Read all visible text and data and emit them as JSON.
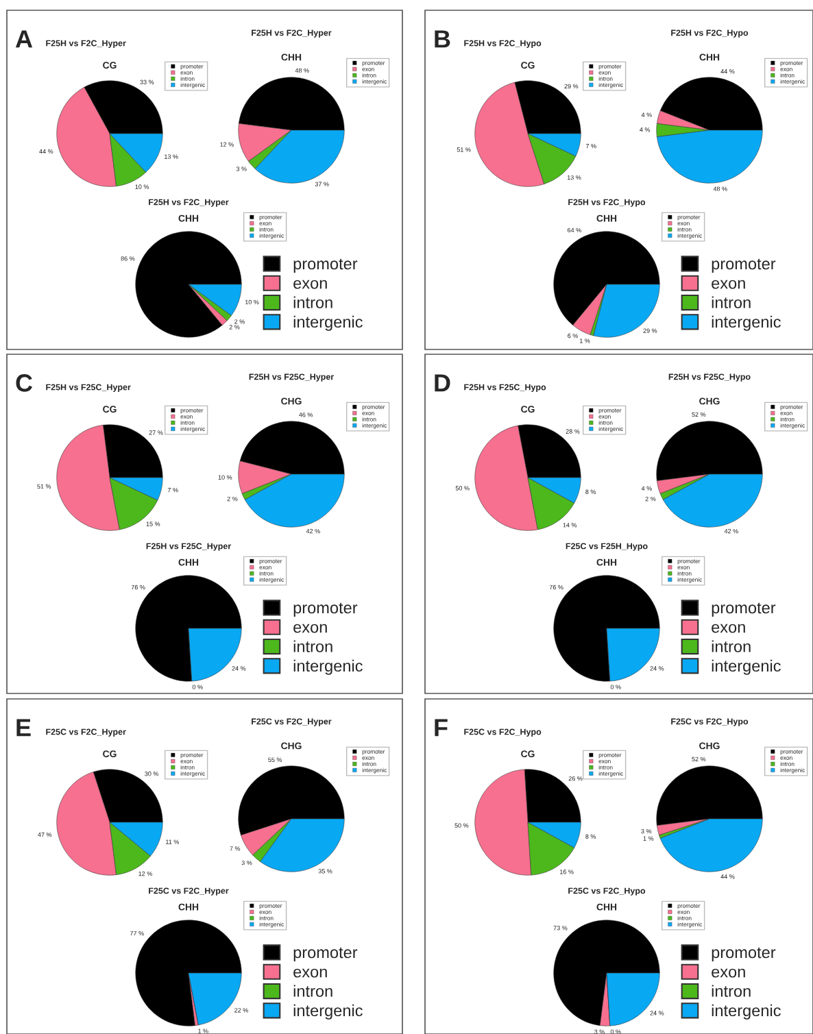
{
  "chart_data": [
    {
      "type": "pie",
      "title": "F25H vs F2C_Hyper",
      "subtitle": "CG",
      "annotations": [
        "A"
      ],
      "categories": [
        "promoter",
        "exon",
        "intron",
        "intergenic"
      ],
      "values": [
        33,
        44,
        10,
        13
      ],
      "value_labels": [
        "33 %",
        "44 %",
        "10 %",
        "13 %"
      ],
      "colors": [
        "#000000",
        "#f7708f",
        "#4cb81c",
        "#09a8f3"
      ],
      "legend": "top right"
    },
    {
      "type": "pie",
      "title": "F25H vs F2C_Hyper",
      "subtitle": "CHH",
      "categories": [
        "promoter",
        "exon",
        "intron",
        "intergenic"
      ],
      "values": [
        48,
        12,
        3,
        37
      ],
      "value_labels": [
        "48 %",
        "12 %",
        "3 %",
        "37 %"
      ],
      "colors": [
        "#000000",
        "#f7708f",
        "#4cb81c",
        "#09a8f3"
      ],
      "legend": "top right"
    },
    {
      "type": "pie",
      "title": "F25H vs F2C_Hyper",
      "subtitle": "CHH",
      "categories": [
        "promoter",
        "exon",
        "intron",
        "intergenic"
      ],
      "values": [
        86,
        2,
        2,
        10
      ],
      "value_labels": [
        "86 %",
        "2 %",
        "2 %",
        "10 %"
      ],
      "colors": [
        "#000000",
        "#f7708f",
        "#4cb81c",
        "#09a8f3"
      ],
      "legend": "right"
    },
    {
      "type": "pie",
      "title": "F25H vs F2C_Hypo",
      "subtitle": "CG",
      "annotations": [
        "B"
      ],
      "categories": [
        "promoter",
        "exon",
        "intron",
        "intergenic"
      ],
      "values": [
        29,
        51,
        13,
        7
      ],
      "value_labels": [
        "29 %",
        "51 %",
        "13 %",
        "7 %"
      ],
      "colors": [
        "#000000",
        "#f7708f",
        "#4cb81c",
        "#09a8f3"
      ],
      "legend": "top right"
    },
    {
      "type": "pie",
      "title": "F25H vs F2C_Hypo",
      "subtitle": "CHH",
      "categories": [
        "promoter",
        "exon",
        "intron",
        "intergenic"
      ],
      "values": [
        44,
        4,
        4,
        48
      ],
      "value_labels": [
        "44 %",
        "4 %",
        "4 %",
        "48 %"
      ],
      "colors": [
        "#000000",
        "#f7708f",
        "#4cb81c",
        "#09a8f3"
      ],
      "legend": "top right"
    },
    {
      "type": "pie",
      "title": "F25H vs F2C_Hypo",
      "subtitle": "CHH",
      "categories": [
        "promoter",
        "exon",
        "intron",
        "intergenic"
      ],
      "values": [
        64,
        6,
        1,
        29
      ],
      "value_labels": [
        "64 %",
        "6 %",
        "1 %",
        "29 %"
      ],
      "colors": [
        "#000000",
        "#f7708f",
        "#4cb81c",
        "#09a8f3"
      ],
      "legend": "right"
    },
    {
      "type": "pie",
      "title": "F25H vs F25C_Hyper",
      "subtitle": "CG",
      "annotations": [
        "C"
      ],
      "categories": [
        "promoter",
        "exon",
        "intron",
        "intergenic"
      ],
      "values": [
        27,
        51,
        15,
        7
      ],
      "value_labels": [
        "27 %",
        "51 %",
        "15 %",
        "7 %"
      ],
      "colors": [
        "#000000",
        "#f7708f",
        "#4cb81c",
        "#09a8f3"
      ],
      "legend": "top right"
    },
    {
      "type": "pie",
      "title": "F25H vs F25C_Hyper",
      "subtitle": "CHG",
      "categories": [
        "promoter",
        "exon",
        "intron",
        "intergenic"
      ],
      "values": [
        46,
        10,
        2,
        42
      ],
      "value_labels": [
        "46 %",
        "10 %",
        "2 %",
        "42 %"
      ],
      "colors": [
        "#000000",
        "#f7708f",
        "#4cb81c",
        "#09a8f3"
      ],
      "legend": "top right"
    },
    {
      "type": "pie",
      "title": "F25H vs F25C_Hyper",
      "subtitle": "CHH",
      "categories": [
        "promoter",
        "exon",
        "intron",
        "intergenic"
      ],
      "values": [
        76,
        0,
        0,
        24
      ],
      "value_labels": [
        "76 %",
        "0 %",
        null,
        "24 %"
      ],
      "colors": [
        "#000000",
        "#f7708f",
        "#4cb81c",
        "#09a8f3"
      ],
      "legend": "right"
    },
    {
      "type": "pie",
      "title": "F25H vs F25C_Hypo",
      "subtitle": "CG",
      "annotations": [
        "D"
      ],
      "categories": [
        "promoter",
        "exon",
        "intron",
        "intergenic"
      ],
      "values": [
        28,
        50,
        14,
        8
      ],
      "value_labels": [
        "28 %",
        "50 %",
        "14 %",
        "8 %"
      ],
      "colors": [
        "#000000",
        "#f7708f",
        "#4cb81c",
        "#09a8f3"
      ],
      "legend": "top right"
    },
    {
      "type": "pie",
      "title": "F25H vs F25C_Hypo",
      "subtitle": "CHG",
      "categories": [
        "promoter",
        "exon",
        "intron",
        "intergenic"
      ],
      "values": [
        52,
        4,
        2,
        42
      ],
      "value_labels": [
        "52 %",
        "4 %",
        "2 %",
        "42 %"
      ],
      "colors": [
        "#000000",
        "#f7708f",
        "#4cb81c",
        "#09a8f3"
      ],
      "legend": "top right"
    },
    {
      "type": "pie",
      "title": "F25C vs F25H_Hypo",
      "subtitle": "CHH",
      "categories": [
        "promoter",
        "exon",
        "intron",
        "intergenic"
      ],
      "values": [
        76,
        0,
        0,
        24
      ],
      "value_labels": [
        "76 %",
        "0 %",
        null,
        "24 %"
      ],
      "colors": [
        "#000000",
        "#f7708f",
        "#4cb81c",
        "#09a8f3"
      ],
      "legend": "right"
    },
    {
      "type": "pie",
      "title": "F25C vs F2C_Hyper",
      "subtitle": "CG",
      "annotations": [
        "E"
      ],
      "categories": [
        "promoter",
        "exon",
        "intron",
        "intergenic"
      ],
      "values": [
        30,
        47,
        12,
        11
      ],
      "value_labels": [
        "30 %",
        "47 %",
        "12 %",
        "11 %"
      ],
      "colors": [
        "#000000",
        "#f7708f",
        "#4cb81c",
        "#09a8f3"
      ],
      "legend": "top right"
    },
    {
      "type": "pie",
      "title": "F25C vs F2C_Hyper",
      "subtitle": "CHG",
      "categories": [
        "promoter",
        "exon",
        "intron",
        "intergenic"
      ],
      "values": [
        55,
        7,
        3,
        35
      ],
      "value_labels": [
        "55 %",
        "7 %",
        "3 %",
        "35 %"
      ],
      "colors": [
        "#000000",
        "#f7708f",
        "#4cb81c",
        "#09a8f3"
      ],
      "legend": "top right"
    },
    {
      "type": "pie",
      "title": "F25C vs F2C_Hyper",
      "subtitle": "CHH",
      "categories": [
        "promoter",
        "exon",
        "intron",
        "intergenic"
      ],
      "values": [
        77,
        1,
        0,
        22
      ],
      "value_labels": [
        "77 %",
        "1 %",
        null,
        "22 %"
      ],
      "colors": [
        "#000000",
        "#f7708f",
        "#4cb81c",
        "#09a8f3"
      ],
      "legend": "right"
    },
    {
      "type": "pie",
      "title": "F25C vs F2C_Hypo",
      "subtitle": "CG",
      "annotations": [
        "F"
      ],
      "categories": [
        "promoter",
        "exon",
        "intron",
        "intergenic"
      ],
      "values": [
        26,
        50,
        16,
        8
      ],
      "value_labels": [
        "26 %",
        "50 %",
        "16 %",
        "8 %"
      ],
      "colors": [
        "#000000",
        "#f7708f",
        "#4cb81c",
        "#09a8f3"
      ],
      "legend": "top right"
    },
    {
      "type": "pie",
      "title": "F25C vs F2C_Hypo",
      "subtitle": "CHG",
      "categories": [
        "promoter",
        "exon",
        "intron",
        "intergenic"
      ],
      "values": [
        52,
        3,
        1,
        44
      ],
      "value_labels": [
        "52 %",
        "3 %",
        "1 %",
        "44 %"
      ],
      "colors": [
        "#000000",
        "#f7708f",
        "#4cb81c",
        "#09a8f3"
      ],
      "legend": "top right"
    },
    {
      "type": "pie",
      "title": "F25C vs F2C_Hypo",
      "subtitle": "CHH",
      "categories": [
        "promoter",
        "exon",
        "intron",
        "intergenic"
      ],
      "values": [
        73,
        3,
        0,
        24
      ],
      "value_labels": [
        "73 %",
        "3 %",
        "0 %",
        "24 %"
      ],
      "colors": [
        "#000000",
        "#f7708f",
        "#4cb81c",
        "#09a8f3"
      ],
      "legend": "right"
    }
  ]
}
